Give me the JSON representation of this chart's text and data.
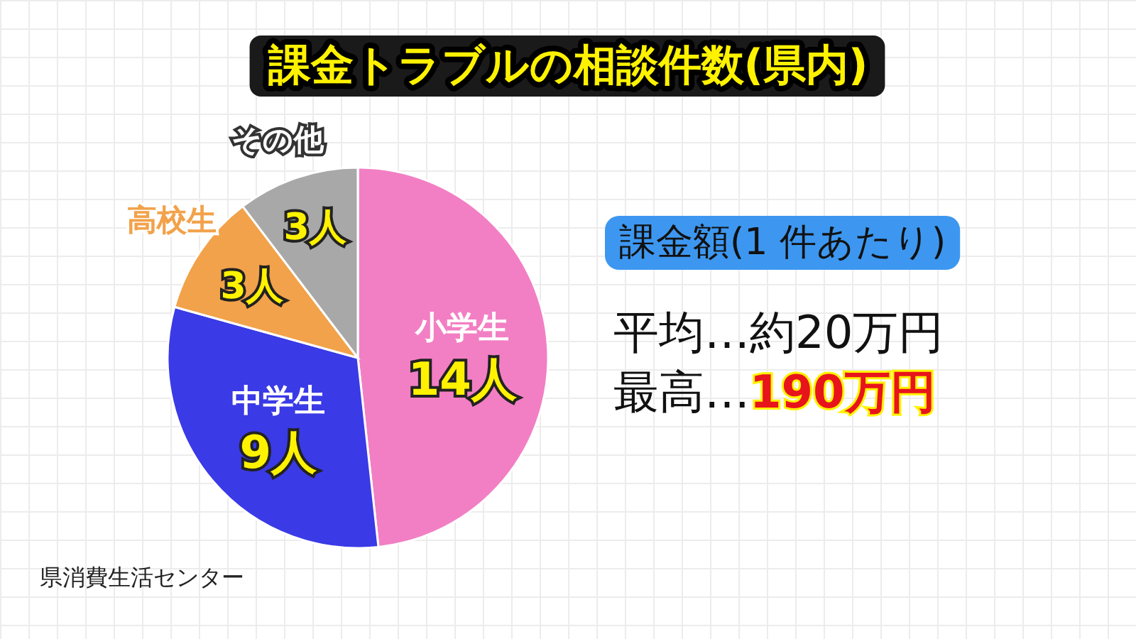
{
  "chart_data": {
    "type": "pie",
    "title": "課金トラブルの相談件数(県内)",
    "categories": [
      "小学生",
      "中学生",
      "高校生",
      "その他"
    ],
    "values": [
      14,
      9,
      3,
      3
    ],
    "value_labels": [
      "14人",
      "9人",
      "3人",
      "3人"
    ],
    "colors": [
      "#f27fc4",
      "#3a3ae6",
      "#f2a24a",
      "#a8a8a8"
    ],
    "annotations": [
      "課金額(1 件あたり)",
      "平均…約20万円",
      "最高…190万円",
      "県消費生活センター"
    ]
  }
}
